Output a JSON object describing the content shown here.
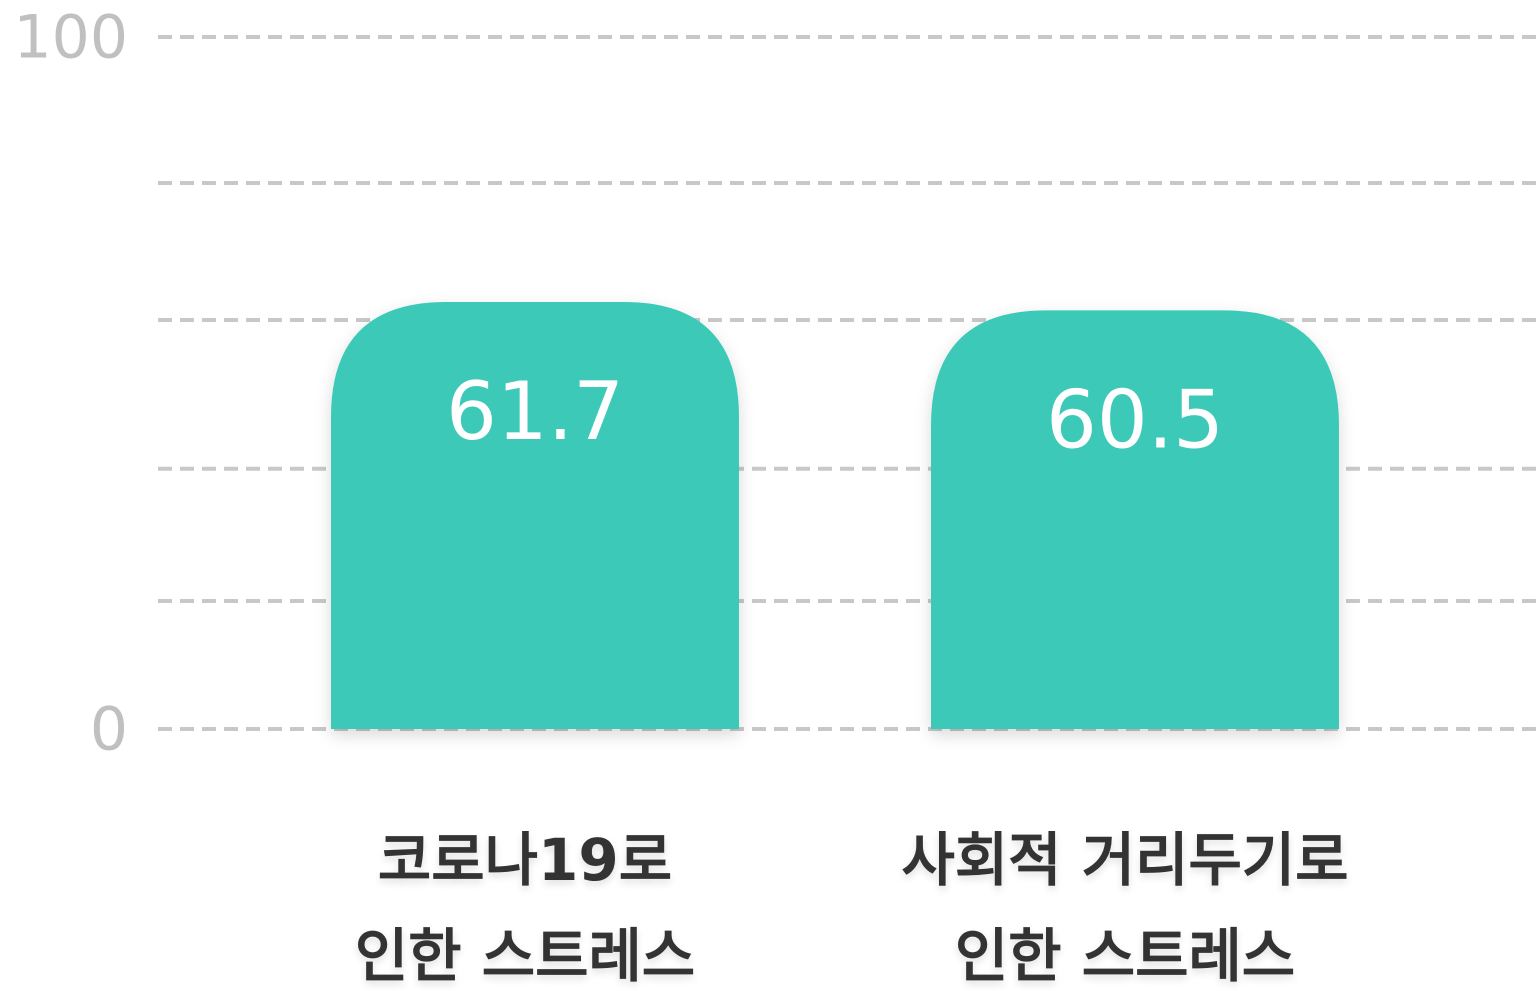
{
  "chart_data": {
    "type": "bar",
    "categories": [
      "코로나19로\n인한 스트레스",
      "사회적 거리두기로\n인한 스트레스"
    ],
    "values": [
      61.7,
      60.5
    ],
    "color": "#3cc9b7",
    "ylim": [
      0,
      100
    ],
    "yticks": [
      0,
      100
    ],
    "ygrid": [
      0,
      18.5,
      37.6,
      59.1,
      78.9,
      100
    ],
    "grid": true,
    "value_label_color": "#ffffff"
  }
}
